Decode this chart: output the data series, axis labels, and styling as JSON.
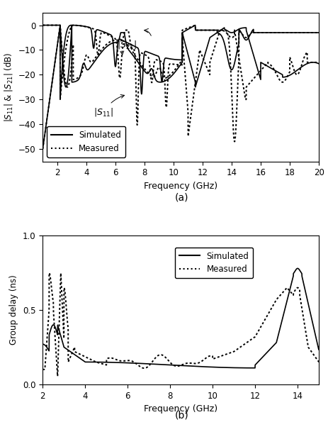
{
  "fig_width": 4.64,
  "fig_height": 6.02,
  "dpi": 100,
  "subplot_a": {
    "xlabel": "Frequency (GHz)",
    "ylabel": "$|S_{11}|$ & $|S_{21}|$ (dB)",
    "xlim": [
      1,
      20
    ],
    "ylim": [
      -55,
      5
    ],
    "xticks": [
      2,
      4,
      6,
      8,
      10,
      12,
      14,
      16,
      18,
      20
    ],
    "yticks": [
      0,
      -10,
      -20,
      -30,
      -40,
      -50
    ],
    "legend_entries": [
      "Simulated",
      "Measured"
    ]
  },
  "subplot_b": {
    "xlabel": "Frequency (GHz)",
    "ylabel": "Group delay (ns)",
    "xlim": [
      2,
      15
    ],
    "ylim": [
      0,
      1
    ],
    "xticks": [
      2,
      4,
      6,
      8,
      10,
      12,
      14
    ],
    "yticks": [
      0,
      0.5,
      1
    ],
    "legend_entries": [
      "Simulated",
      "Measured"
    ]
  }
}
